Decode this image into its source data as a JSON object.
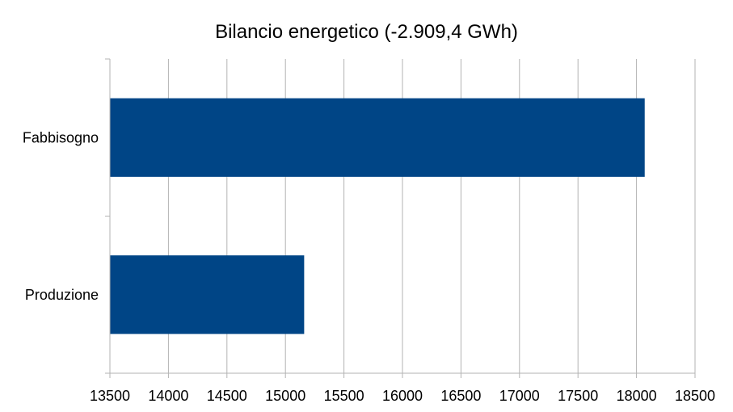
{
  "chart_data": {
    "type": "bar",
    "orientation": "horizontal",
    "title": "Bilancio energetico (-2.909,4 GWh)",
    "categories": [
      "Fabbisogno",
      "Produzione"
    ],
    "values": [
      18070,
      15160
    ],
    "xlim": [
      13500,
      18500
    ],
    "x_ticks": [
      "13500",
      "14000",
      "14500",
      "15000",
      "15500",
      "16000",
      "16500",
      "17000",
      "17500",
      "18000",
      "18500"
    ],
    "bar_color": "#004586",
    "grid": "vertical",
    "legend": "none"
  }
}
